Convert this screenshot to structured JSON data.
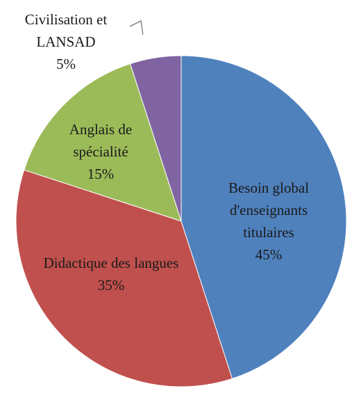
{
  "chart_data": {
    "type": "pie",
    "categories": [
      "Besoin global d'enseignants titulaires",
      "Didactique des langues",
      "Anglais de spécialité",
      "Civilisation et LANSAD"
    ],
    "values": [
      45,
      35,
      15,
      5
    ],
    "value_labels": [
      "45%",
      "35%",
      "15%",
      "5%"
    ],
    "colors": [
      "#4f81bd",
      "#c0504d",
      "#9bbb59",
      "#8064a2"
    ]
  }
}
